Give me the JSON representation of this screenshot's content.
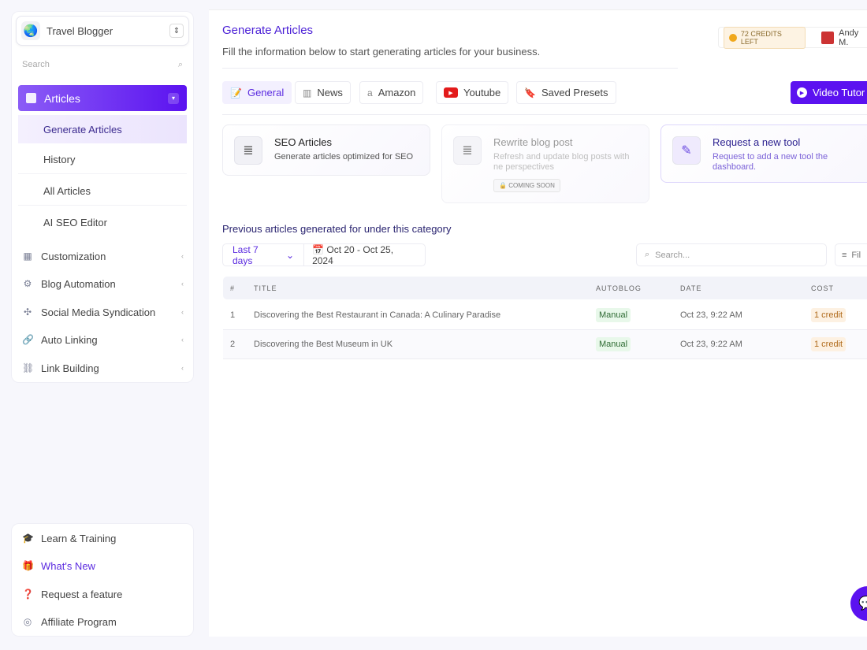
{
  "sidebar": {
    "workspace": "Travel Blogger",
    "search_placeholder": "Search",
    "articles_label": "Articles",
    "sub_items": [
      {
        "label": "Generate Articles"
      },
      {
        "label": "History"
      },
      {
        "label": "All Articles"
      },
      {
        "label": "AI SEO Editor"
      }
    ],
    "nav_items": [
      {
        "label": "Customization",
        "icon": "grid-icon"
      },
      {
        "label": "Blog Automation",
        "icon": "gears-icon"
      },
      {
        "label": "Social Media Syndication",
        "icon": "network-icon"
      },
      {
        "label": "Auto Linking",
        "icon": "link-icon"
      },
      {
        "label": "Link Building",
        "icon": "link-add-icon"
      }
    ],
    "bottom_items": [
      {
        "label": "Learn & Training",
        "icon": "graduation-cap-icon"
      },
      {
        "label": "What's New",
        "icon": "gift-icon"
      },
      {
        "label": "Request a feature",
        "icon": "question-icon"
      },
      {
        "label": "Affiliate Program",
        "icon": "affiliate-icon"
      }
    ]
  },
  "header": {
    "title": "Generate Articles",
    "subtitle": "Fill the information below to start generating articles for your business.",
    "credits": "72 CREDITS LEFT",
    "user": "Andy M."
  },
  "tabs": [
    {
      "label": "General"
    },
    {
      "label": "News"
    },
    {
      "label": "Amazon"
    },
    {
      "label": "Youtube"
    },
    {
      "label": "Saved Presets"
    }
  ],
  "video_button": "Video Tutor",
  "cards": [
    {
      "title": "SEO Articles",
      "desc": "Generate articles optimized for SEO"
    },
    {
      "title": "Rewrite blog post",
      "desc": "Refresh and update blog posts with ne perspectives",
      "badge": "COMING SOON"
    },
    {
      "title": "Request a new tool",
      "desc": "Request to add a new tool the dashboard."
    }
  ],
  "previous": {
    "heading": "Previous articles generated for under this category",
    "range": "Last 7 days",
    "dates": "Oct 20 - Oct 25, 2024",
    "search_placeholder": "Search...",
    "filter": "Fil"
  },
  "table": {
    "columns": [
      "#",
      "TITLE",
      "AUTOBLOG",
      "DATE",
      "COST"
    ],
    "rows": [
      {
        "n": "1",
        "title": "Discovering the Best Restaurant in Canada: A Culinary Paradise",
        "autoblog": "Manual",
        "date": "Oct 23, 9:22 AM",
        "cost": "1 credit"
      },
      {
        "n": "2",
        "title": "Discovering the Best Museum in UK",
        "autoblog": "Manual",
        "date": "Oct 23, 9:22 AM",
        "cost": "1 credit"
      }
    ]
  },
  "colors": {
    "accent": "#5b12f0",
    "title": "#4a1fd6"
  }
}
